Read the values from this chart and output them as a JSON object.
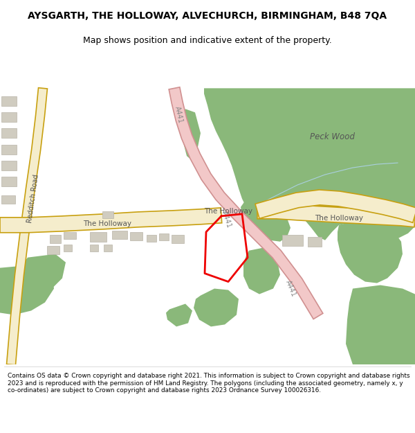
{
  "title": "AYSGARTH, THE HOLLOWAY, ALVECHURCH, BIRMINGHAM, B48 7QA",
  "subtitle": "Map shows position and indicative extent of the property.",
  "footer": "Contains OS data © Crown copyright and database right 2021. This information is subject to Crown copyright and database rights 2023 and is reproduced with the permission of HM Land Registry. The polygons (including the associated geometry, namely x, y co-ordinates) are subject to Crown copyright and database rights 2023 Ordnance Survey 100026316.",
  "map_bg": "#f8f6f1",
  "green": "#8ab87a",
  "road_fill": "#f5edcc",
  "road_border": "#c8a010",
  "a441_fill": "#f2c8c8",
  "a441_border": "#d09090",
  "plot_color": "#ee0000",
  "building_color": "#d0ccc0",
  "building_border": "#b8b4a8",
  "water_color": "#a0c8dc",
  "label_color": "#555555",
  "title_size": 10,
  "subtitle_size": 9,
  "footer_size": 6.4,
  "road_label_size": 7.5,
  "small_label_size": 7,
  "wood_label_size": 8.5
}
